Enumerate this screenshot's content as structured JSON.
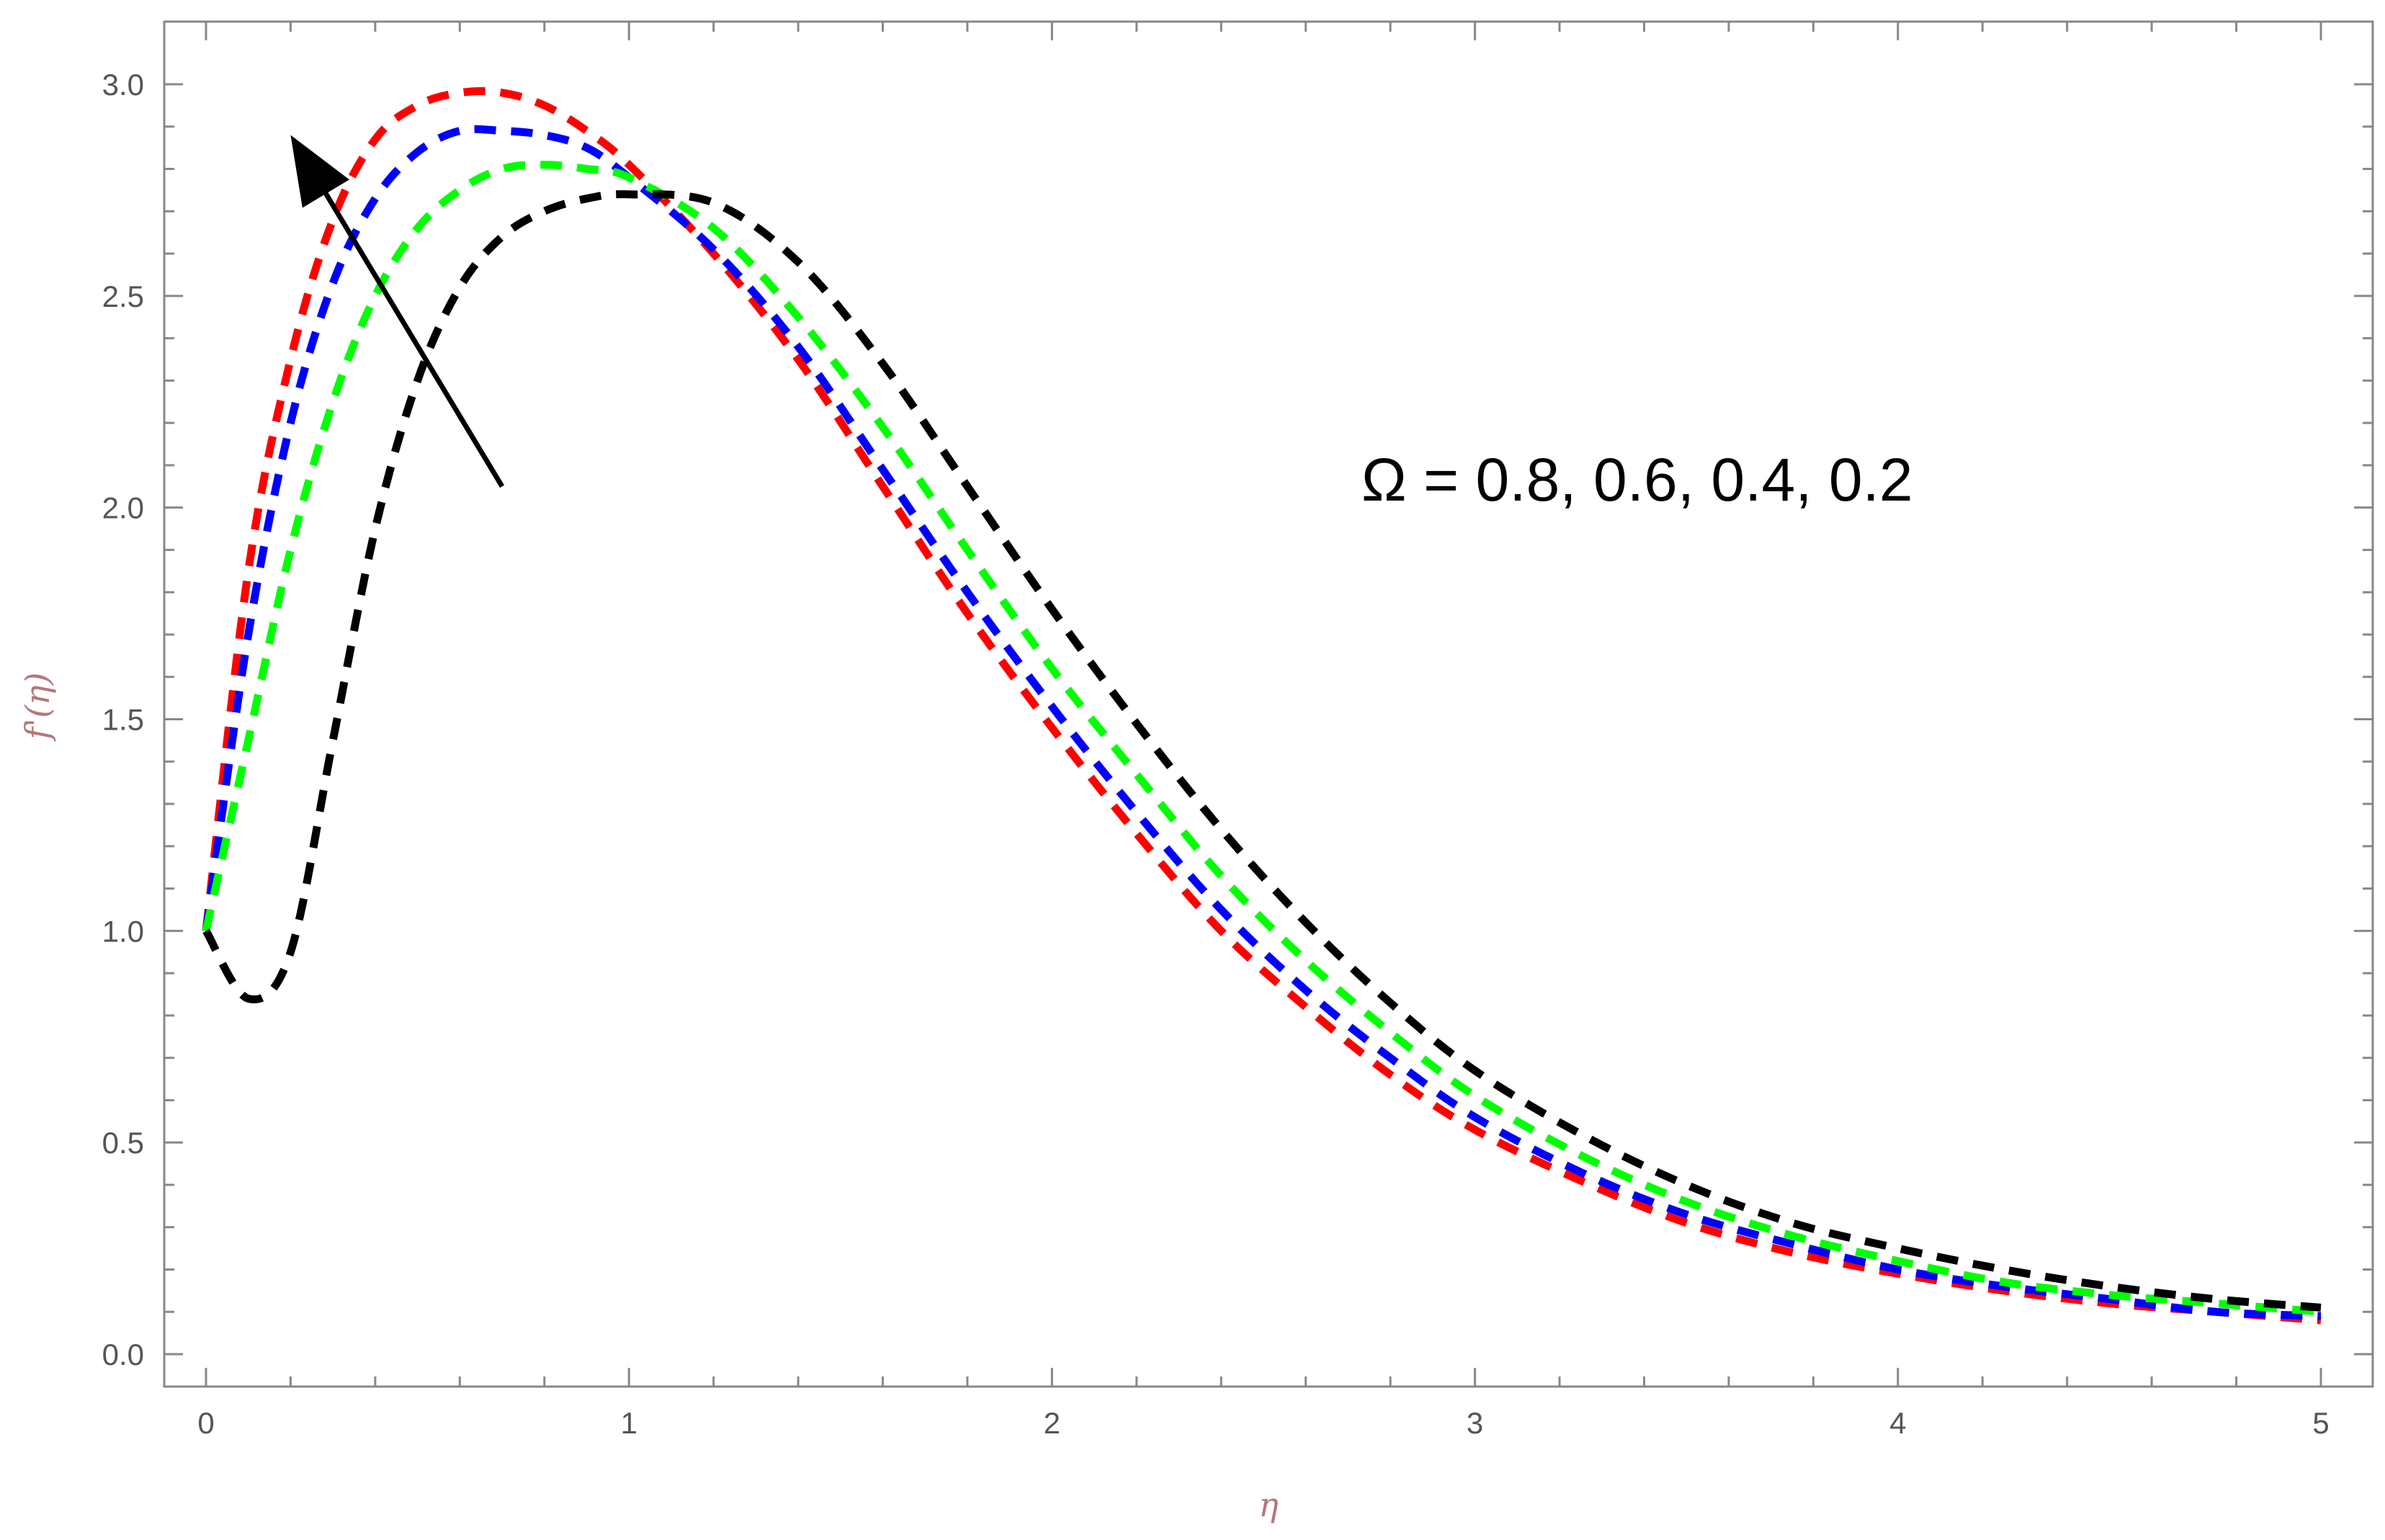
{
  "chart_data": {
    "type": "line",
    "title": "",
    "xlabel": "η",
    "ylabel": "f'(η)",
    "xlim": [
      0,
      5
    ],
    "ylim": [
      0,
      3
    ],
    "grid": false,
    "x_ticks": [
      "0",
      "1",
      "2",
      "3",
      "4",
      "5"
    ],
    "y_ticks": [
      "0.0",
      "0.5",
      "1.0",
      "1.5",
      "2.0",
      "2.5",
      "3.0"
    ],
    "annotation": "Ω = 0.8, 0.6, 0.4, 0.2",
    "arrow": {
      "from": [
        0.7,
        2.05
      ],
      "to": [
        0.2,
        2.88
      ],
      "direction": "increasing Ω"
    },
    "line_style": "dashed",
    "x": [
      0,
      0.1,
      0.2,
      0.3,
      0.4,
      0.5,
      0.6,
      0.7,
      0.8,
      0.9,
      1.0,
      1.2,
      1.4,
      1.6,
      1.8,
      2.0,
      2.2,
      2.4,
      2.6,
      2.8,
      3.0,
      3.25,
      3.5,
      3.75,
      4.0,
      4.25,
      4.5,
      4.75,
      5.0
    ],
    "series": [
      {
        "color": "#ff0000",
        "values": [
          1.0,
          1.85,
          2.35,
          2.68,
          2.87,
          2.95,
          2.98,
          2.98,
          2.95,
          2.89,
          2.81,
          2.6,
          2.35,
          2.05,
          1.75,
          1.48,
          1.23,
          1.0,
          0.82,
          0.66,
          0.53,
          0.41,
          0.31,
          0.24,
          0.19,
          0.15,
          0.12,
          0.1,
          0.08
        ]
      },
      {
        "color": "#0000ff",
        "values": [
          1.0,
          1.7,
          2.2,
          2.53,
          2.73,
          2.84,
          2.89,
          2.89,
          2.88,
          2.85,
          2.78,
          2.61,
          2.38,
          2.09,
          1.8,
          1.53,
          1.28,
          1.05,
          0.86,
          0.7,
          0.56,
          0.43,
          0.33,
          0.26,
          0.2,
          0.16,
          0.13,
          0.1,
          0.09
        ]
      },
      {
        "color": "#00ff00",
        "values": [
          1.0,
          1.45,
          1.9,
          2.25,
          2.5,
          2.66,
          2.75,
          2.8,
          2.81,
          2.8,
          2.78,
          2.66,
          2.45,
          2.19,
          1.9,
          1.62,
          1.37,
          1.13,
          0.93,
          0.76,
          0.61,
          0.47,
          0.36,
          0.28,
          0.22,
          0.17,
          0.14,
          0.12,
          0.1
        ]
      },
      {
        "color": "#000000",
        "values": [
          1.0,
          0.84,
          0.95,
          1.45,
          1.95,
          2.3,
          2.52,
          2.64,
          2.7,
          2.73,
          2.74,
          2.72,
          2.58,
          2.34,
          2.05,
          1.76,
          1.49,
          1.24,
          1.02,
          0.83,
          0.67,
          0.52,
          0.4,
          0.31,
          0.25,
          0.2,
          0.16,
          0.13,
          0.11
        ]
      }
    ]
  }
}
